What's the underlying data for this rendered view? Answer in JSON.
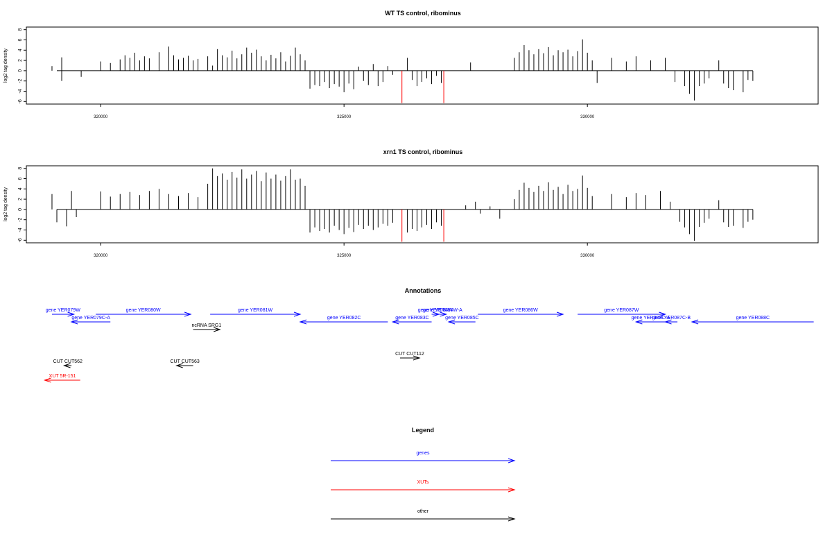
{
  "chart_data": [
    {
      "type": "bar",
      "title": "WT TS control, ribominus",
      "xlabel": "",
      "ylabel": "log2 tag density",
      "xlim": [
        319100,
        333400
      ],
      "ylim": [
        -6.5,
        8.5
      ],
      "yticks": [
        8,
        6,
        4,
        2,
        0,
        -2,
        -4,
        -6
      ],
      "xticks": [
        320000,
        325000,
        330000
      ],
      "xtick_labels": [
        "320000",
        "325000",
        "330000"
      ],
      "grid": false,
      "series": [
        {
          "color": "#000000",
          "points": [
            [
              319000,
              0.9
            ],
            [
              319200,
              2.6
            ],
            [
              319200,
              -2.0
            ],
            [
              319600,
              -1.2
            ],
            [
              320000,
              1.8
            ],
            [
              320200,
              1.5
            ],
            [
              320400,
              2.2
            ],
            [
              320500,
              3.0
            ],
            [
              320600,
              2.5
            ],
            [
              320700,
              3.5
            ],
            [
              320800,
              2.0
            ],
            [
              320900,
              2.8
            ],
            [
              321000,
              2.4
            ],
            [
              321200,
              3.6
            ],
            [
              321400,
              4.7
            ],
            [
              321500,
              3.0
            ],
            [
              321600,
              2.2
            ],
            [
              321700,
              2.5
            ],
            [
              321800,
              2.9
            ],
            [
              321900,
              2.0
            ],
            [
              322000,
              2.3
            ],
            [
              322200,
              2.8
            ],
            [
              322300,
              1.0
            ],
            [
              322400,
              4.2
            ],
            [
              322500,
              3.0
            ],
            [
              322600,
              2.6
            ],
            [
              322700,
              3.9
            ],
            [
              322800,
              2.4
            ],
            [
              322900,
              3.2
            ],
            [
              323000,
              4.5
            ],
            [
              323100,
              3.5
            ],
            [
              323200,
              4.1
            ],
            [
              323300,
              2.8
            ],
            [
              323400,
              2.0
            ],
            [
              323500,
              3.1
            ],
            [
              323600,
              2.4
            ],
            [
              323700,
              3.6
            ],
            [
              323800,
              1.8
            ],
            [
              323900,
              2.9
            ],
            [
              324000,
              4.5
            ],
            [
              324100,
              3.2
            ],
            [
              324200,
              2.0
            ],
            [
              324300,
              -3.5
            ],
            [
              324400,
              -2.8
            ],
            [
              324500,
              -3.0
            ],
            [
              324600,
              -2.2
            ],
            [
              324700,
              -3.4
            ],
            [
              324800,
              -2.6
            ],
            [
              324900,
              -3.1
            ],
            [
              325000,
              -4.2
            ],
            [
              325100,
              -2.5
            ],
            [
              325200,
              -3.6
            ],
            [
              325300,
              0.8
            ],
            [
              325400,
              -2.0
            ],
            [
              325500,
              -2.8
            ],
            [
              325600,
              1.3
            ],
            [
              325700,
              -3.0
            ],
            [
              325800,
              -2.2
            ],
            [
              325900,
              0.9
            ],
            [
              326000,
              -0.8
            ],
            [
              326300,
              2.5
            ],
            [
              326400,
              -1.8
            ],
            [
              326500,
              -3.0
            ],
            [
              326600,
              -2.2
            ],
            [
              326700,
              -1.5
            ],
            [
              326800,
              -2.6
            ],
            [
              326900,
              -1.0
            ],
            [
              327000,
              -2.4
            ],
            [
              327600,
              1.6
            ],
            [
              328500,
              2.5
            ],
            [
              328600,
              3.6
            ],
            [
              328700,
              5.0
            ],
            [
              328800,
              4.0
            ],
            [
              328900,
              3.2
            ],
            [
              329000,
              4.2
            ],
            [
              329100,
              3.4
            ],
            [
              329200,
              4.6
            ],
            [
              329300,
              3.0
            ],
            [
              329400,
              4.0
            ],
            [
              329500,
              3.6
            ],
            [
              329600,
              4.1
            ],
            [
              329700,
              2.8
            ],
            [
              329800,
              3.8
            ],
            [
              329900,
              6.1
            ],
            [
              330000,
              3.5
            ],
            [
              330100,
              2.0
            ],
            [
              330200,
              -2.4
            ],
            [
              330500,
              2.5
            ],
            [
              330800,
              1.8
            ],
            [
              331000,
              2.8
            ],
            [
              331300,
              2.0
            ],
            [
              331600,
              2.5
            ],
            [
              331800,
              -2.2
            ],
            [
              332000,
              -3.0
            ],
            [
              332100,
              -4.5
            ],
            [
              332200,
              -5.8
            ],
            [
              332300,
              -3.0
            ],
            [
              332400,
              -2.5
            ],
            [
              332500,
              -1.5
            ],
            [
              332700,
              2.0
            ],
            [
              332800,
              -2.5
            ],
            [
              332900,
              -3.4
            ],
            [
              333000,
              -3.8
            ],
            [
              333200,
              -4.2
            ],
            [
              333300,
              -1.8
            ],
            [
              333400,
              -2.0
            ]
          ]
        },
        {
          "color": "#ff0000",
          "points": [
            [
              326190,
              -6.3
            ],
            [
              327050,
              -6.3
            ]
          ]
        }
      ]
    },
    {
      "type": "bar",
      "title": "xrn1 TS control, ribominus",
      "xlabel": "",
      "ylabel": "log2 tag density",
      "xlim": [
        319100,
        333400
      ],
      "ylim": [
        -6.5,
        8.5
      ],
      "yticks": [
        8,
        6,
        4,
        2,
        0,
        -2,
        -4,
        -6
      ],
      "xticks": [
        320000,
        325000,
        330000
      ],
      "xtick_labels": [
        "320000",
        "325000",
        "330000"
      ],
      "grid": false,
      "series": [
        {
          "color": "#000000",
          "points": [
            [
              319000,
              3.0
            ],
            [
              319100,
              -2.5
            ],
            [
              319300,
              -3.3
            ],
            [
              319400,
              3.6
            ],
            [
              319500,
              -1.5
            ],
            [
              320000,
              3.5
            ],
            [
              320200,
              2.5
            ],
            [
              320400,
              3.0
            ],
            [
              320600,
              3.4
            ],
            [
              320800,
              2.8
            ],
            [
              321000,
              3.6
            ],
            [
              321200,
              4.0
            ],
            [
              321400,
              3.0
            ],
            [
              321600,
              2.6
            ],
            [
              321800,
              3.2
            ],
            [
              322000,
              2.4
            ],
            [
              322200,
              5.0
            ],
            [
              322300,
              8.0
            ],
            [
              322400,
              6.5
            ],
            [
              322500,
              7.0
            ],
            [
              322600,
              5.8
            ],
            [
              322700,
              7.3
            ],
            [
              322800,
              6.2
            ],
            [
              322900,
              7.8
            ],
            [
              323000,
              6.0
            ],
            [
              323100,
              6.8
            ],
            [
              323200,
              7.5
            ],
            [
              323300,
              5.5
            ],
            [
              323400,
              7.2
            ],
            [
              323500,
              6.0
            ],
            [
              323600,
              6.8
            ],
            [
              323700,
              5.6
            ],
            [
              323800,
              6.5
            ],
            [
              323900,
              7.8
            ],
            [
              324000,
              5.8
            ],
            [
              324100,
              6.0
            ],
            [
              324200,
              4.6
            ],
            [
              324300,
              -4.5
            ],
            [
              324400,
              -3.5
            ],
            [
              324500,
              -4.2
            ],
            [
              324600,
              -3.8
            ],
            [
              324700,
              -4.5
            ],
            [
              324800,
              -3.2
            ],
            [
              324900,
              -4.0
            ],
            [
              325000,
              -4.8
            ],
            [
              325100,
              -3.6
            ],
            [
              325200,
              -4.4
            ],
            [
              325300,
              -3.0
            ],
            [
              325400,
              -3.8
            ],
            [
              325500,
              -3.2
            ],
            [
              325600,
              -4.0
            ],
            [
              325700,
              -3.5
            ],
            [
              325800,
              -2.8
            ],
            [
              325900,
              -3.2
            ],
            [
              326000,
              -2.6
            ],
            [
              326300,
              -4.5
            ],
            [
              326400,
              -3.8
            ],
            [
              326500,
              -4.2
            ],
            [
              326600,
              -3.5
            ],
            [
              326700,
              -3.0
            ],
            [
              326800,
              -3.8
            ],
            [
              326900,
              -2.5
            ],
            [
              327000,
              -3.2
            ],
            [
              327500,
              0.8
            ],
            [
              327700,
              1.5
            ],
            [
              327800,
              -0.8
            ],
            [
              328000,
              0.6
            ],
            [
              328200,
              -1.8
            ],
            [
              328500,
              2.0
            ],
            [
              328600,
              3.8
            ],
            [
              328700,
              5.2
            ],
            [
              328800,
              4.2
            ],
            [
              328900,
              3.4
            ],
            [
              329000,
              4.6
            ],
            [
              329100,
              3.6
            ],
            [
              329200,
              5.3
            ],
            [
              329300,
              3.8
            ],
            [
              329400,
              4.4
            ],
            [
              329500,
              3.0
            ],
            [
              329600,
              4.8
            ],
            [
              329700,
              3.6
            ],
            [
              329800,
              4.0
            ],
            [
              329900,
              6.6
            ],
            [
              330000,
              4.2
            ],
            [
              330100,
              2.6
            ],
            [
              330500,
              3.0
            ],
            [
              330800,
              2.4
            ],
            [
              331000,
              3.2
            ],
            [
              331200,
              2.8
            ],
            [
              331500,
              3.6
            ],
            [
              331700,
              1.5
            ],
            [
              331900,
              -2.4
            ],
            [
              332000,
              -3.5
            ],
            [
              332100,
              -4.8
            ],
            [
              332200,
              -6.1
            ],
            [
              332300,
              -3.4
            ],
            [
              332400,
              -2.6
            ],
            [
              332500,
              -1.8
            ],
            [
              332700,
              1.8
            ],
            [
              332800,
              -2.5
            ],
            [
              332900,
              -3.4
            ],
            [
              333000,
              -3.2
            ],
            [
              333200,
              -3.6
            ],
            [
              333300,
              -2.4
            ],
            [
              333400,
              -2.0
            ]
          ]
        },
        {
          "color": "#ff0000",
          "points": [
            [
              326190,
              -6.3
            ],
            [
              327050,
              -6.3
            ]
          ]
        }
      ]
    }
  ],
  "annotations": {
    "title": "Annotations",
    "features": [
      {
        "label": "gene YER079W",
        "color": "#0000ff",
        "strand": "+",
        "start": 319000,
        "end": 319450,
        "row": 0
      },
      {
        "label": "gene YER079C-A",
        "color": "#0000ff",
        "strand": "-",
        "start": 319400,
        "end": 320200,
        "row": 1
      },
      {
        "label": "gene YER080W",
        "color": "#0000ff",
        "strand": "+",
        "start": 319900,
        "end": 321850,
        "row": 0
      },
      {
        "label": "gene YER081W",
        "color": "#0000ff",
        "strand": "+",
        "start": 322250,
        "end": 324100,
        "row": 0
      },
      {
        "label": "ncRNA SRG1",
        "color": "#000000",
        "strand": "+",
        "start": 321900,
        "end": 322450,
        "row": 2
      },
      {
        "label": "gene YER082C",
        "color": "#0000ff",
        "strand": "-",
        "start": 324100,
        "end": 325900,
        "row": 1
      },
      {
        "label": "gene YER083C",
        "color": "#0000ff",
        "strand": "-",
        "start": 326000,
        "end": 326800,
        "row": 1
      },
      {
        "label": "gene YER084W",
        "color": "#0000ff",
        "strand": "+",
        "start": 326800,
        "end": 326950,
        "row": 0
      },
      {
        "label": "gene YER084W-A",
        "color": "#0000ff",
        "strand": "+",
        "start": 326950,
        "end": 327100,
        "row": 0
      },
      {
        "label": "gene YER085C",
        "color": "#0000ff",
        "strand": "-",
        "start": 327150,
        "end": 327700,
        "row": 1
      },
      {
        "label": "gene YER086W",
        "color": "#0000ff",
        "strand": "+",
        "start": 327750,
        "end": 329500,
        "row": 0
      },
      {
        "label": "gene YER087W",
        "color": "#0000ff",
        "strand": "+",
        "start": 329800,
        "end": 331600,
        "row": 0
      },
      {
        "label": "gene YER087C-A",
        "color": "#0000ff",
        "strand": "-",
        "start": 331000,
        "end": 331600,
        "row": 1
      },
      {
        "label": "gene YER087C-B",
        "color": "#0000ff",
        "strand": "-",
        "start": 331600,
        "end": 331850,
        "row": 1
      },
      {
        "label": "gene YER088C",
        "color": "#0000ff",
        "strand": "-",
        "start": 332150,
        "end": 334650,
        "row": 1
      },
      {
        "label": "CUT CUT562",
        "color": "#000000",
        "strand": "-",
        "start": 319250,
        "end": 319400,
        "row": 4
      },
      {
        "label": "CUT CUT563",
        "color": "#000000",
        "strand": "-",
        "start": 321560,
        "end": 321900,
        "row": 4
      },
      {
        "label": "CUT CUT112",
        "color": "#000000",
        "strand": "+",
        "start": 326150,
        "end": 326550,
        "row": 3
      },
      {
        "label": "XUT 5R-151",
        "color": "#ff0000",
        "strand": "-",
        "start": 318850,
        "end": 319580,
        "row": 5
      }
    ]
  },
  "legend": {
    "title": "Legend",
    "items": [
      {
        "label": "genes",
        "color": "#0000ff"
      },
      {
        "label": "XUTs",
        "color": "#ff0000"
      },
      {
        "label": "other",
        "color": "#000000"
      }
    ]
  }
}
